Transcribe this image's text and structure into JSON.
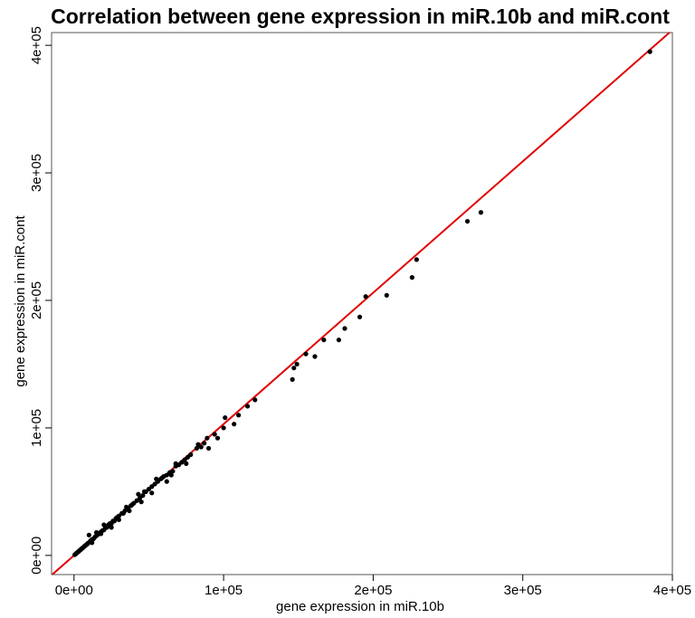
{
  "chart_data": {
    "type": "scatter",
    "title": "Correlation between gene expression in miR.10b and miR.cont",
    "xlabel": "gene expression in miR.10b",
    "ylabel": "gene expression in miR.cont",
    "xlim": [
      -15000,
      400000
    ],
    "ylim": [
      -15000,
      410000
    ],
    "x_ticks": [
      0,
      100000,
      200000,
      300000,
      400000
    ],
    "x_tick_labels": [
      "0e+00",
      "1e+05",
      "2e+05",
      "3e+05",
      "4e+05"
    ],
    "y_ticks": [
      0,
      100000,
      200000,
      300000,
      400000
    ],
    "y_tick_labels": [
      "0e+00",
      "1e+05",
      "2e+05",
      "3e+05",
      "4e+05"
    ],
    "grid": false,
    "point_color": "#000000",
    "fit_line": {
      "slope": 1.03,
      "intercept": 0,
      "color": "#e00000"
    },
    "series": [
      {
        "values": [
          [
            385000,
            395000
          ],
          [
            272000,
            269000
          ],
          [
            263000,
            262000
          ],
          [
            229000,
            232000
          ],
          [
            226000,
            218000
          ],
          [
            209000,
            204000
          ],
          [
            195000,
            203000
          ],
          [
            191000,
            187000
          ],
          [
            181000,
            178000
          ],
          [
            177000,
            169000
          ],
          [
            167000,
            169000
          ],
          [
            161000,
            156000
          ],
          [
            155000,
            158000
          ],
          [
            149000,
            150000
          ],
          [
            147000,
            147000
          ],
          [
            146000,
            138000
          ],
          [
            121000,
            122000
          ],
          [
            116000,
            117000
          ],
          [
            110000,
            110000
          ],
          [
            107000,
            103000
          ],
          [
            101000,
            108000
          ],
          [
            100000,
            100000
          ],
          [
            96000,
            92000
          ],
          [
            94000,
            95000
          ],
          [
            90000,
            84000
          ],
          [
            89000,
            92000
          ],
          [
            85000,
            85000
          ],
          [
            82000,
            84000
          ],
          [
            78000,
            79000
          ],
          [
            76000,
            77000
          ],
          [
            74000,
            75000
          ],
          [
            72000,
            73000
          ],
          [
            70000,
            71000
          ],
          [
            68000,
            70000
          ],
          [
            66000,
            66000
          ],
          [
            64000,
            65000
          ],
          [
            62000,
            63000
          ],
          [
            60000,
            62000
          ],
          [
            58000,
            60000
          ],
          [
            56000,
            58000
          ],
          [
            54000,
            56000
          ],
          [
            52000,
            54000
          ],
          [
            50000,
            52000
          ],
          [
            48000,
            50000
          ],
          [
            46000,
            47000
          ],
          [
            44000,
            45000
          ],
          [
            43000,
            48000
          ],
          [
            42000,
            43000
          ],
          [
            40000,
            41000
          ],
          [
            38000,
            39000
          ],
          [
            36000,
            37000
          ],
          [
            34000,
            35000
          ],
          [
            33000,
            33000
          ],
          [
            32000,
            33000
          ],
          [
            30000,
            31000
          ],
          [
            29000,
            30000
          ],
          [
            28000,
            29000
          ],
          [
            27000,
            27000
          ],
          [
            26000,
            27000
          ],
          [
            25000,
            25000
          ],
          [
            24000,
            25000
          ],
          [
            23000,
            24000
          ],
          [
            22000,
            22000
          ],
          [
            21000,
            22000
          ],
          [
            20000,
            20000
          ],
          [
            19000,
            19500
          ],
          [
            18000,
            18500
          ],
          [
            17000,
            17500
          ],
          [
            16000,
            16500
          ],
          [
            15000,
            15500
          ],
          [
            14000,
            14500
          ],
          [
            13000,
            13000
          ],
          [
            12000,
            12500
          ],
          [
            11000,
            11500
          ],
          [
            10500,
            10500
          ],
          [
            10000,
            16000
          ],
          [
            9500,
            9800
          ],
          [
            9000,
            9200
          ],
          [
            8500,
            8600
          ],
          [
            8000,
            8200
          ],
          [
            7500,
            7700
          ],
          [
            7000,
            7200
          ],
          [
            6500,
            6600
          ],
          [
            6000,
            6100
          ],
          [
            5500,
            5700
          ],
          [
            5000,
            5200
          ],
          [
            4500,
            4600
          ],
          [
            4000,
            4100
          ],
          [
            3500,
            3600
          ],
          [
            3000,
            3100
          ],
          [
            2500,
            2600
          ],
          [
            2000,
            2100
          ],
          [
            1500,
            1600
          ],
          [
            1000,
            1100
          ],
          [
            500,
            550
          ],
          [
            20000,
            24000
          ],
          [
            25000,
            22000
          ],
          [
            35000,
            38000
          ],
          [
            45000,
            42000
          ],
          [
            55000,
            60000
          ],
          [
            62000,
            58000
          ],
          [
            75000,
            72000
          ],
          [
            83000,
            87000
          ],
          [
            30000,
            28000
          ],
          [
            15000,
            18000
          ],
          [
            12000,
            10000
          ],
          [
            47000,
            50000
          ],
          [
            52000,
            49000
          ],
          [
            65000,
            63000
          ],
          [
            68000,
            72000
          ],
          [
            87000,
            88000
          ],
          [
            59000,
            61000
          ],
          [
            39000,
            40000
          ],
          [
            37000,
            35000
          ],
          [
            18000,
            17000
          ]
        ]
      }
    ]
  }
}
